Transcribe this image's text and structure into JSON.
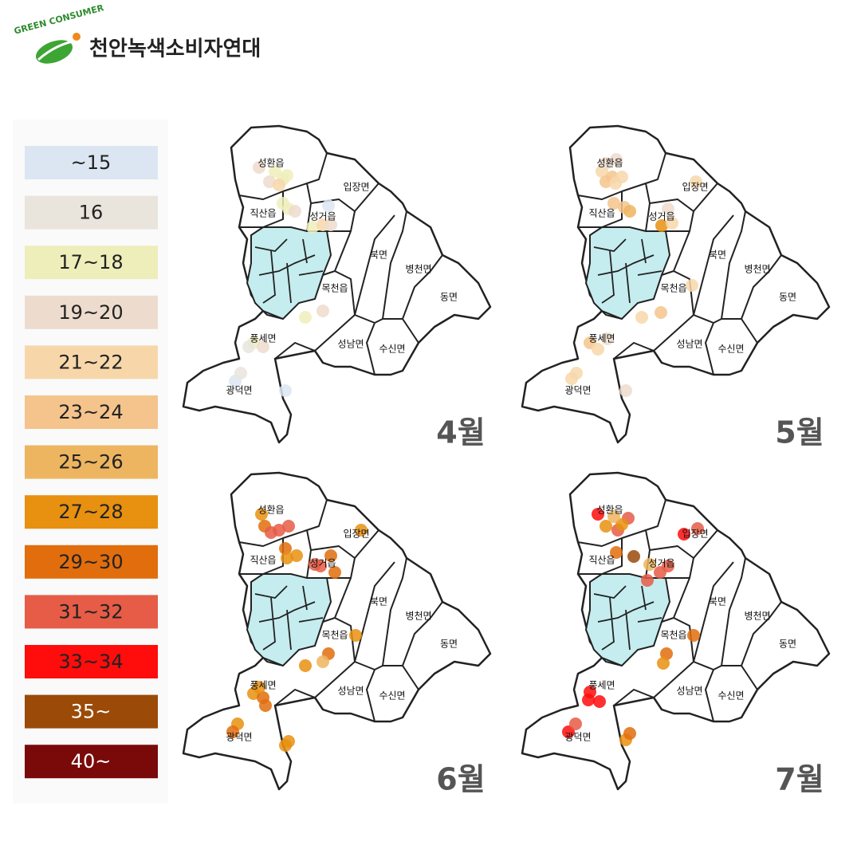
{
  "header": {
    "logo_text": "GREEN CONSUMER",
    "title": "천안녹색소비자연대"
  },
  "legend": [
    {
      "label": "~15",
      "color": "#dce6f2"
    },
    {
      "label": "16",
      "color": "#e9e5dd"
    },
    {
      "label": "17~18",
      "color": "#eeeebb"
    },
    {
      "label": "19~20",
      "color": "#eddccd"
    },
    {
      "label": "21~22",
      "color": "#f7d7aa"
    },
    {
      "label": "23~24",
      "color": "#f4c48c"
    },
    {
      "label": "25~26",
      "color": "#edb560"
    },
    {
      "label": "27~28",
      "color": "#e8900f"
    },
    {
      "label": "29~30",
      "color": "#e26d0d"
    },
    {
      "label": "31~32",
      "color": "#e65c46"
    },
    {
      "label": "33~34",
      "color": "#ff0c0c"
    },
    {
      "label": "35~",
      "color": "#9b4a08"
    },
    {
      "label": "40~",
      "color": "#7a0a0a"
    }
  ],
  "districts": [
    "성환읍",
    "입장면",
    "직산읍",
    "성거읍",
    "북면",
    "병천면",
    "목천읍",
    "동면",
    "풍세면",
    "성남면",
    "수신면",
    "광덕면"
  ],
  "maps": [
    {
      "month": "4월"
    },
    {
      "month": "5월"
    },
    {
      "month": "6월"
    },
    {
      "month": "7월"
    }
  ]
}
